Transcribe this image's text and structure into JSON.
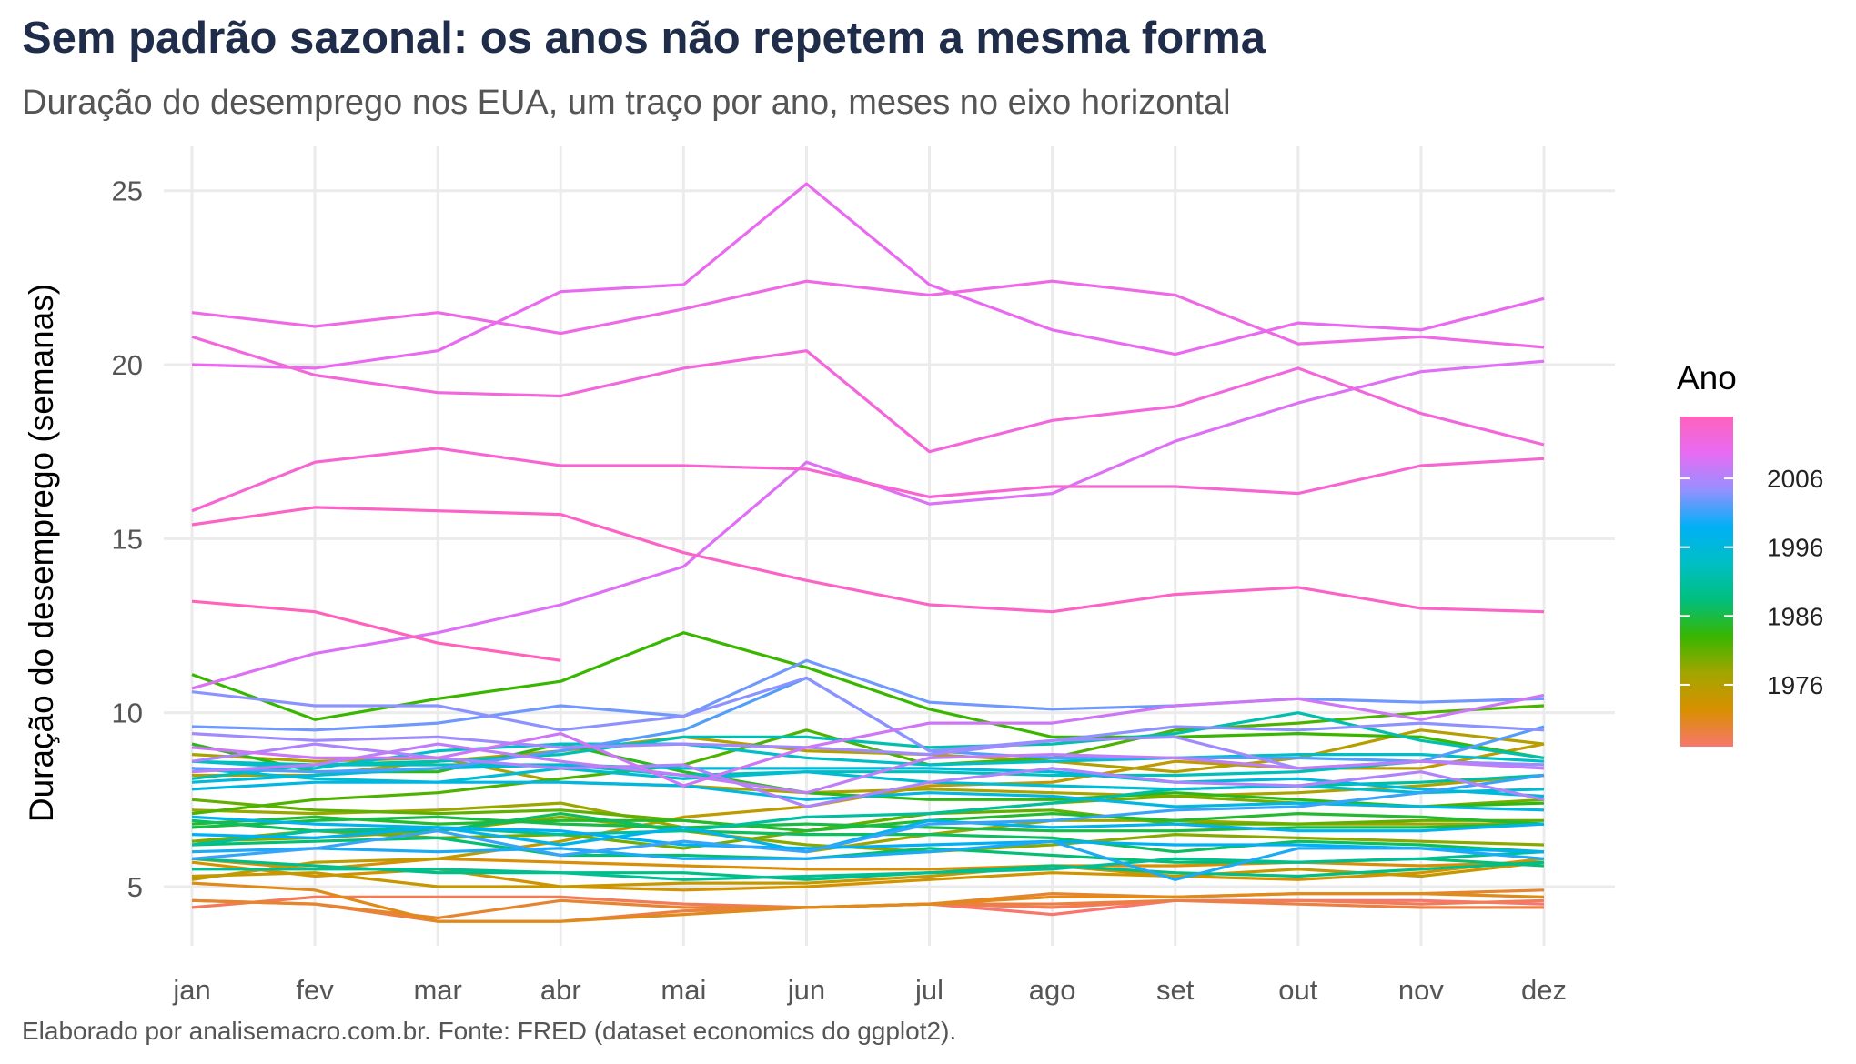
{
  "title": "Sem padrão sazonal: os anos não repetem a mesma forma",
  "subtitle": "Duração do desemprego nos EUA, um traço por ano, meses no eixo horizontal",
  "caption": "Elaborado por analisemacro.com.br. Fonte: FRED (dataset economics do ggplot2).",
  "chart_data": {
    "type": "line",
    "xlabel": "",
    "ylabel": "Duração do desemprego (semanas)",
    "categories": [
      "jan",
      "fev",
      "mar",
      "abr",
      "mai",
      "jun",
      "jul",
      "ago",
      "set",
      "out",
      "nov",
      "dez"
    ],
    "y_ticks": [
      5,
      10,
      15,
      20,
      25
    ],
    "ylim": [
      3.3,
      26.3
    ],
    "grid": true,
    "legend": {
      "title": "Ano",
      "position": "right",
      "ticks": [
        1976,
        1986,
        1996,
        2006
      ],
      "range": [
        1967,
        2015
      ],
      "gradient": [
        "#f8766d",
        "#d89000",
        "#a3a500",
        "#39b600",
        "#00bf7d",
        "#00bfc4",
        "#00b0f6",
        "#9590ff",
        "#e76bf3",
        "#ff62bc"
      ]
    },
    "series": [
      {
        "year": 1967,
        "values": [
          null,
          null,
          null,
          null,
          null,
          null,
          4.5,
          4.2,
          4.6,
          4.6,
          4.6,
          4.5
        ]
      },
      {
        "year": 1968,
        "values": [
          4.4,
          4.7,
          4.7,
          4.7,
          4.5,
          4.4,
          4.5,
          4.4,
          4.6,
          4.6,
          4.5,
          4.6
        ]
      },
      {
        "year": 1969,
        "values": [
          4.6,
          4.5,
          4.0,
          4.0,
          4.3,
          4.4,
          4.5,
          4.5,
          4.6,
          4.5,
          4.4,
          4.4
        ]
      },
      {
        "year": 1970,
        "values": [
          4.6,
          4.5,
          4.1,
          4.6,
          4.4,
          4.4,
          4.5,
          4.8,
          4.7,
          4.8,
          4.8,
          4.9
        ]
      },
      {
        "year": 1971,
        "values": [
          5.1,
          4.9,
          4.0,
          4.0,
          4.2,
          4.4,
          4.5,
          4.7,
          4.7,
          4.8,
          4.8,
          4.7
        ]
      },
      {
        "year": 1972,
        "values": [
          5.8,
          5.5,
          5.8,
          5.7,
          5.6,
          5.5,
          5.5,
          5.6,
          5.6,
          5.7,
          5.6,
          5.7
        ]
      },
      {
        "year": 1973,
        "values": [
          5.7,
          5.3,
          5.5,
          5.0,
          4.9,
          5.0,
          5.2,
          5.4,
          5.3,
          5.2,
          5.4,
          5.8
        ]
      },
      {
        "year": 1974,
        "values": [
          5.3,
          5.4,
          5.0,
          5.0,
          5.1,
          5.1,
          5.3,
          5.6,
          5.3,
          5.5,
          5.3,
          5.7
        ]
      },
      {
        "year": 1975,
        "values": [
          5.2,
          5.7,
          5.8,
          6.3,
          7.0,
          7.3,
          7.9,
          8.0,
          8.6,
          8.4,
          8.4,
          9.1
        ]
      },
      {
        "year": 1976,
        "values": [
          8.2,
          8.2,
          8.6,
          8.9,
          9.3,
          8.9,
          8.8,
          8.6,
          8.3,
          8.7,
          9.5,
          9.1
        ]
      },
      {
        "year": 1977,
        "values": [
          8.8,
          8.6,
          8.7,
          8.0,
          7.9,
          7.7,
          7.8,
          7.7,
          7.6,
          7.7,
          7.9,
          8.2
        ]
      },
      {
        "year": 1978,
        "values": [
          7.2,
          7.1,
          7.2,
          7.4,
          6.7,
          6.0,
          6.5,
          6.9,
          6.9,
          6.8,
          6.8,
          6.8
        ]
      },
      {
        "year": 1979,
        "values": [
          6.3,
          6.4,
          6.6,
          7.0,
          6.6,
          6.2,
          6.0,
          6.2,
          6.5,
          6.4,
          6.3,
          6.2
        ]
      },
      {
        "year": 1980,
        "values": [
          6.3,
          6.6,
          6.4,
          6.5,
          6.1,
          6.6,
          7.1,
          7.4,
          7.6,
          7.4,
          7.3,
          7.5
        ]
      },
      {
        "year": 1981,
        "values": [
          7.5,
          7.2,
          7.1,
          7.2,
          6.9,
          6.6,
          7.1,
          7.2,
          6.8,
          6.8,
          6.9,
          6.9
        ]
      },
      {
        "year": 1982,
        "values": [
          7.1,
          7.5,
          7.7,
          8.1,
          8.5,
          9.5,
          8.5,
          8.7,
          9.5,
          9.7,
          10.0,
          10.2
        ]
      },
      {
        "year": 1983,
        "values": [
          11.1,
          9.8,
          10.4,
          10.9,
          12.3,
          11.3,
          10.1,
          9.3,
          9.3,
          9.4,
          9.3,
          8.7
        ]
      },
      {
        "year": 1984,
        "values": [
          9.1,
          8.3,
          8.3,
          9.1,
          8.3,
          7.7,
          7.5,
          7.5,
          7.7,
          7.5,
          7.3,
          7.4
        ]
      },
      {
        "year": 1985,
        "values": [
          6.8,
          7.0,
          6.8,
          6.9,
          6.9,
          6.6,
          6.9,
          7.1,
          6.9,
          7.1,
          7.0,
          6.8
        ]
      },
      {
        "year": 1986,
        "values": [
          6.7,
          6.9,
          7.0,
          6.8,
          6.7,
          6.8,
          6.7,
          6.6,
          6.6,
          6.7,
          6.7,
          6.8
        ]
      },
      {
        "year": 1987,
        "values": [
          6.9,
          6.6,
          6.6,
          7.1,
          6.6,
          6.5,
          6.5,
          6.4,
          6.0,
          6.3,
          6.2,
          6.0
        ]
      },
      {
        "year": 1988,
        "values": [
          6.2,
          6.3,
          6.4,
          5.9,
          5.9,
          5.8,
          6.1,
          5.9,
          5.7,
          5.7,
          5.8,
          5.6
        ]
      },
      {
        "year": 1989,
        "values": [
          5.8,
          5.6,
          5.4,
          5.4,
          5.4,
          5.2,
          5.4,
          5.6,
          5.4,
          5.3,
          5.5,
          5.7
        ]
      },
      {
        "year": 1990,
        "values": [
          5.5,
          5.5,
          5.5,
          5.4,
          5.2,
          5.3,
          5.4,
          5.5,
          5.8,
          5.7,
          5.8,
          6.0
        ]
      },
      {
        "year": 1991,
        "values": [
          6.2,
          6.6,
          6.7,
          6.5,
          6.6,
          7.0,
          7.1,
          7.4,
          7.8,
          7.9,
          8.0,
          8.2
        ]
      },
      {
        "year": 1992,
        "values": [
          8.1,
          8.5,
          8.6,
          8.8,
          9.3,
          9.3,
          9.0,
          9.1,
          9.4,
          10.0,
          9.2,
          8.7
        ]
      },
      {
        "year": 1993,
        "values": [
          8.6,
          8.5,
          8.5,
          8.5,
          8.2,
          8.3,
          8.3,
          8.2,
          8.2,
          8.3,
          8.6,
          8.5
        ]
      },
      {
        "year": 1994,
        "values": [
          8.6,
          8.4,
          8.9,
          9.1,
          9.1,
          8.7,
          8.5,
          8.6,
          8.7,
          8.8,
          8.8,
          8.6
        ]
      },
      {
        "year": 1995,
        "values": [
          8.4,
          8.1,
          8.0,
          8.4,
          8.1,
          8.3,
          8.0,
          7.9,
          7.8,
          7.9,
          7.7,
          7.8
        ]
      },
      {
        "year": 1996,
        "values": [
          8.0,
          8.2,
          8.4,
          8.5,
          8.4,
          8.4,
          8.4,
          8.3,
          8.0,
          8.1,
          7.8,
          7.6
        ]
      },
      {
        "year": 1997,
        "values": [
          7.8,
          8.0,
          8.0,
          8.0,
          7.9,
          7.5,
          7.7,
          7.6,
          7.3,
          7.4,
          7.3,
          7.2
        ]
      },
      {
        "year": 1998,
        "values": [
          7.0,
          6.8,
          6.7,
          6.2,
          6.7,
          6.0,
          6.9,
          6.7,
          6.8,
          6.6,
          6.6,
          6.8
        ]
      },
      {
        "year": 1999,
        "values": [
          6.5,
          6.4,
          6.7,
          6.6,
          6.2,
          6.1,
          6.2,
          6.3,
          6.2,
          6.2,
          6.1,
          6.0
        ]
      },
      {
        "year": 2000,
        "values": [
          6.0,
          6.1,
          6.0,
          6.1,
          5.8,
          5.8,
          6.0,
          6.3,
          5.2,
          6.1,
          6.1,
          5.8
        ]
      },
      {
        "year": 2001,
        "values": [
          5.8,
          6.1,
          6.6,
          5.9,
          6.3,
          6.0,
          6.8,
          6.9,
          7.2,
          7.3,
          7.7,
          8.2
        ]
      },
      {
        "year": 2002,
        "values": [
          8.4,
          8.3,
          8.4,
          8.9,
          9.5,
          11.0,
          8.9,
          8.7,
          8.7,
          8.7,
          8.6,
          9.6
        ]
      },
      {
        "year": 2003,
        "values": [
          9.6,
          9.5,
          9.7,
          10.2,
          9.9,
          11.5,
          10.3,
          10.1,
          10.2,
          10.4,
          10.3,
          10.4
        ]
      },
      {
        "year": 2004,
        "values": [
          10.6,
          10.2,
          10.2,
          9.5,
          9.9,
          11.0,
          8.9,
          9.2,
          9.6,
          9.5,
          9.7,
          9.5
        ]
      },
      {
        "year": 2005,
        "values": [
          9.4,
          9.2,
          9.3,
          9.0,
          9.1,
          9.0,
          8.8,
          9.2,
          9.3,
          8.4,
          8.6,
          8.5
        ]
      },
      {
        "year": 2006,
        "values": [
          8.6,
          9.1,
          8.7,
          8.4,
          8.5,
          7.3,
          8.0,
          8.4,
          8.0,
          7.9,
          8.3,
          7.5
        ]
      },
      {
        "year": 2007,
        "values": [
          8.3,
          8.5,
          9.1,
          8.6,
          8.2,
          7.7,
          8.7,
          8.8,
          8.7,
          8.4,
          8.6,
          8.4
        ]
      },
      {
        "year": 2008,
        "values": [
          9.0,
          8.7,
          8.7,
          9.4,
          7.9,
          9.0,
          9.7,
          9.7,
          10.2,
          10.4,
          9.8,
          10.5
        ]
      },
      {
        "year": 2009,
        "values": [
          10.7,
          11.7,
          12.3,
          13.1,
          14.2,
          17.2,
          16.0,
          16.3,
          17.8,
          18.9,
          19.8,
          20.1
        ]
      },
      {
        "year": 2010,
        "values": [
          20.0,
          19.9,
          20.4,
          22.1,
          22.3,
          25.2,
          22.3,
          21.0,
          20.3,
          21.2,
          21.0,
          21.9
        ]
      },
      {
        "year": 2011,
        "values": [
          21.5,
          21.1,
          21.5,
          20.9,
          21.6,
          22.4,
          22.0,
          22.4,
          22.0,
          20.6,
          20.8,
          20.5
        ]
      },
      {
        "year": 2012,
        "values": [
          20.8,
          19.7,
          19.2,
          19.1,
          19.9,
          20.4,
          17.5,
          18.4,
          18.8,
          19.9,
          18.6,
          17.7
        ]
      },
      {
        "year": 2013,
        "values": [
          15.8,
          17.2,
          17.6,
          17.1,
          17.1,
          17.0,
          16.2,
          16.5,
          16.5,
          16.3,
          17.1,
          17.3
        ]
      },
      {
        "year": 2014,
        "values": [
          15.4,
          15.9,
          15.8,
          15.7,
          14.6,
          13.8,
          13.1,
          12.9,
          13.4,
          13.6,
          13.0,
          12.9
        ]
      },
      {
        "year": 2015,
        "values": [
          13.2,
          12.9,
          12.0,
          11.5,
          null,
          null,
          null,
          null,
          null,
          null,
          null,
          null
        ]
      }
    ]
  }
}
